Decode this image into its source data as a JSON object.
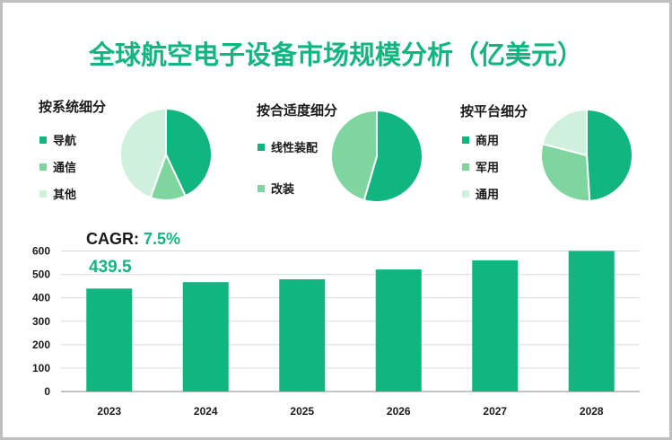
{
  "title": "全球航空电子设备市场规模分析（亿美元）",
  "colors": {
    "accent": "#10b57f",
    "mid": "#7ed59d",
    "light": "#d0f0de",
    "grid": "#d9d9d9",
    "axis": "#888888",
    "border": "#bfbfbf"
  },
  "chart_data": [
    {
      "type": "pie",
      "title": "按系统细分",
      "categories": [
        "导航",
        "通信",
        "其他"
      ],
      "values": [
        43,
        12.5,
        44.5
      ],
      "colors": [
        "#10b57f",
        "#7ed59d",
        "#d0f0de"
      ]
    },
    {
      "type": "pie",
      "title": "按合适度细分",
      "categories": [
        "线性装配",
        "改装"
      ],
      "values": [
        54.5,
        45.5
      ],
      "colors": [
        "#10b57f",
        "#7ed59d"
      ]
    },
    {
      "type": "pie",
      "title": "按平台细分",
      "categories": [
        "商用",
        "军用",
        "通用"
      ],
      "values": [
        49,
        30,
        21
      ],
      "colors": [
        "#10b57f",
        "#7ed59d",
        "#d0f0de"
      ]
    },
    {
      "type": "bar",
      "categories": [
        "2023",
        "2024",
        "2025",
        "2026",
        "2027",
        "2028"
      ],
      "values": [
        439.5,
        467,
        479,
        521,
        560,
        601
      ],
      "ylim": [
        0,
        600
      ],
      "yticks": [
        0,
        100,
        200,
        300,
        400,
        500,
        600
      ],
      "grid": true,
      "annotation": {
        "label": "CAGR:",
        "value": "7.5%"
      },
      "data_labels": {
        "2023": "439.5"
      }
    }
  ]
}
